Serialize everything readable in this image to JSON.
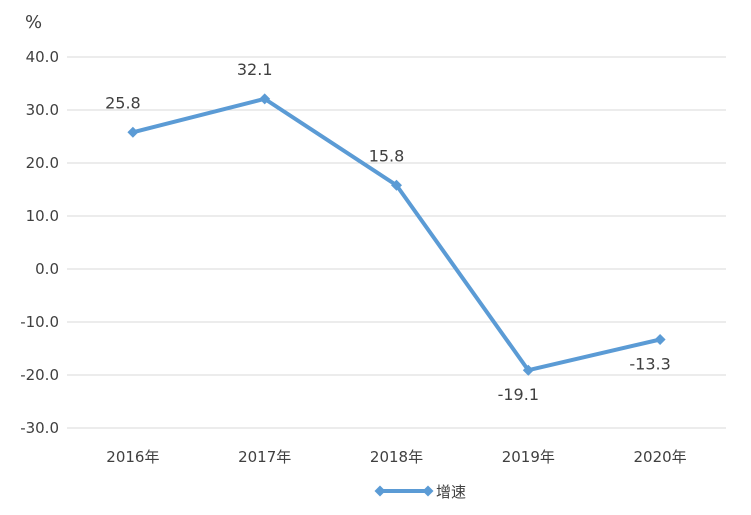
{
  "chart_data": {
    "type": "line",
    "title": "",
    "xlabel": "",
    "ylabel": "",
    "unit": "%",
    "categories": [
      "2016年",
      "2017年",
      "2018年",
      "2019年",
      "2020年"
    ],
    "series": [
      {
        "name": "增速",
        "values": [
          25.8,
          32.1,
          15.8,
          -19.1,
          -13.3
        ],
        "labels": [
          "25.8",
          "32.1",
          "15.8",
          "-19.1",
          "-13.3"
        ],
        "color": "#5b9bd5",
        "marker": "diamond"
      }
    ],
    "ylim": [
      -30,
      40
    ],
    "yticks": [
      40,
      30,
      20,
      10,
      0,
      -10,
      -20,
      -30
    ],
    "ytick_labels": [
      "40.0",
      "30.0",
      "20.0",
      "10.0",
      "0.0",
      "-10.0",
      "-20.0",
      "-30.0"
    ],
    "grid": true,
    "gridline_color": "#d9d9d9",
    "legend_position": "bottom"
  }
}
